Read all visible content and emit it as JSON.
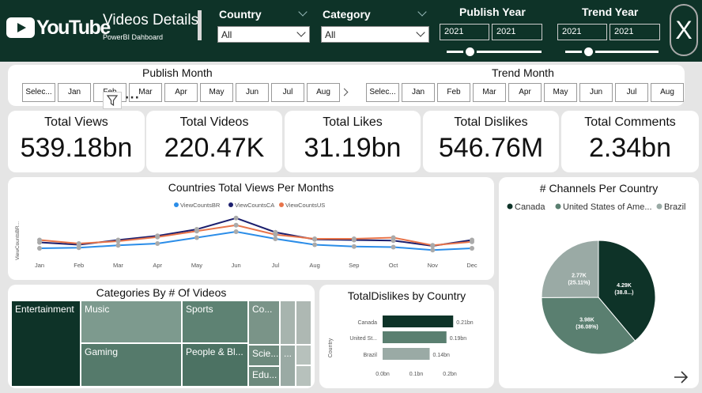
{
  "header": {
    "logo_text": "YouTube",
    "title": "Videos Details",
    "subtitle": "PowerBI Dahboard",
    "country": {
      "label": "Country",
      "value": "All"
    },
    "category": {
      "label": "Category",
      "value": "All"
    },
    "publish_year": {
      "label": "Publish Year",
      "from": "2021",
      "to": "2021"
    },
    "trend_year": {
      "label": "Trend Year",
      "from": "2021",
      "to": "2021"
    },
    "close_label": "X"
  },
  "publish_month": {
    "label": "Publish Month",
    "items": [
      "Selec...",
      "Jan",
      "Feb",
      "Mar",
      "Apr",
      "May",
      "Jun",
      "Jul",
      "Aug"
    ]
  },
  "trend_month": {
    "label": "Trend Month",
    "items": [
      "Selec...",
      "Jan",
      "Feb",
      "Mar",
      "Apr",
      "May",
      "Jun",
      "Jul",
      "Aug"
    ]
  },
  "kpis": [
    {
      "label": "Total Views",
      "value": "539.18bn"
    },
    {
      "label": "Total Videos",
      "value": "220.47K"
    },
    {
      "label": "Total Likes",
      "value": "31.19bn"
    },
    {
      "label": "Total Dislikes",
      "value": "546.76M"
    },
    {
      "label": "Total Comments",
      "value": "2.34bn"
    }
  ],
  "colors": {
    "dark": "#0e3328",
    "br": "#2b8de8",
    "ca": "#1c1f6e",
    "us": "#e8744a"
  },
  "chart_data": [
    {
      "type": "line",
      "title": "Countries Total Views Per Months",
      "ylabel": "ViewCountsBR...",
      "categories": [
        "Jan",
        "Feb",
        "Mar",
        "Apr",
        "May",
        "Jun",
        "Jul",
        "Aug",
        "Sep",
        "Oct",
        "Nov",
        "Dec"
      ],
      "series": [
        {
          "name": "ViewCountsBR",
          "values": [
            4,
            5,
            9,
            12,
            22,
            32,
            20,
            10,
            7,
            6,
            1,
            4
          ]
        },
        {
          "name": "ViewCountsCA",
          "values": [
            14,
            10,
            18,
            25,
            36,
            55,
            31,
            19,
            18,
            17,
            8,
            18
          ]
        },
        {
          "name": "ViewCountsUS",
          "values": [
            18,
            12,
            16,
            23,
            33,
            43,
            27,
            20,
            20,
            22,
            9,
            15
          ]
        }
      ],
      "grid": false,
      "legend": "top"
    },
    {
      "type": "pie",
      "title": "# Channels Per Country",
      "legend": "top",
      "slices": [
        {
          "name": "Canada",
          "value": 4290,
          "label": "4.29K",
          "pct": "(38.8...)",
          "color": "#0e3328"
        },
        {
          "name": "United States of Ame...",
          "value": 3980,
          "label": "3.98K",
          "pct": "(36.08%)",
          "color": "#5a7f70"
        },
        {
          "name": "Brazil",
          "value": 2770,
          "label": "2.77K",
          "pct": "(25.11%)",
          "color": "#9aaaa5"
        }
      ]
    },
    {
      "type": "bar",
      "title": "TotalDislikes by Country",
      "ylabel": "Country",
      "categories": [
        "Canada",
        "United St...",
        "Brazil"
      ],
      "values": [
        0.21,
        0.19,
        0.14
      ],
      "data_labels": [
        "0.21bn",
        "0.19bn",
        "0.14bn"
      ],
      "xticks": [
        "0.0bn",
        "0.1bn",
        "0.2bn"
      ],
      "xlim": [
        0,
        0.2
      ]
    },
    {
      "type": "treemap",
      "title": "Categories By # Of Videos",
      "cells": [
        {
          "label": "Entertainment"
        },
        {
          "label": "Music"
        },
        {
          "label": "Gaming"
        },
        {
          "label": "Sports"
        },
        {
          "label": "People & Bl..."
        },
        {
          "label": "Co..."
        },
        {
          "label": "Scie..."
        },
        {
          "label": "Edu..."
        },
        {
          "label": "..."
        }
      ]
    }
  ]
}
